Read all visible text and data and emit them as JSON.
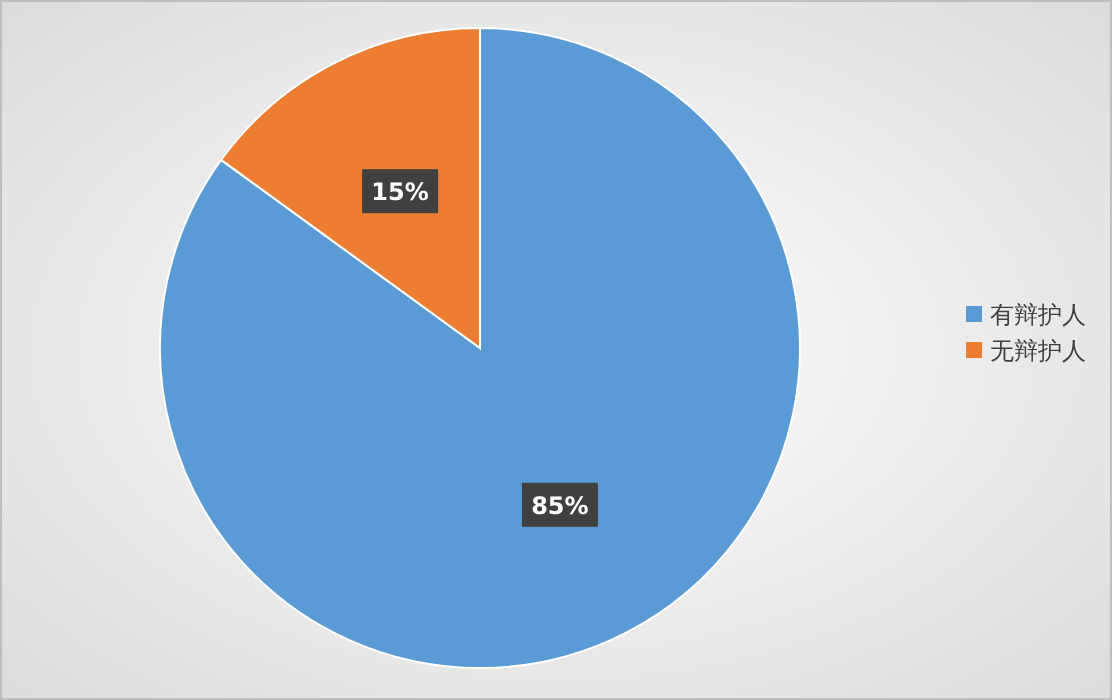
{
  "chart_data": {
    "type": "pie",
    "categories": [
      "有辩护人",
      "无辩护人"
    ],
    "values": [
      85,
      15
    ],
    "colors": [
      "#5b9bd5",
      "#ed7d31"
    ],
    "value_labels": [
      "85%",
      "15%"
    ],
    "legend": "right"
  }
}
